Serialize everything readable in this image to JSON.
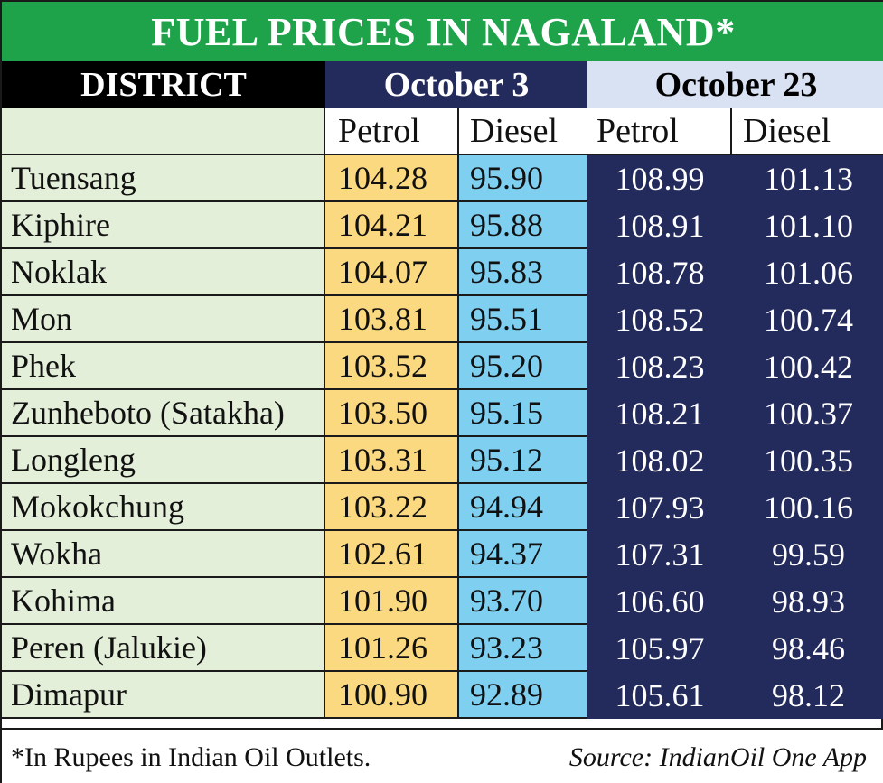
{
  "title": "FUEL PRICES IN NAGALAND*",
  "headers": {
    "district": "DISTRICT",
    "date1": "October 3",
    "date2": "October 23",
    "petrol": "Petrol",
    "diesel": "Diesel"
  },
  "footer": {
    "note": "*In Rupees in Indian Oil Outlets.",
    "source": "Source: IndianOil One App"
  },
  "colors": {
    "title_bg": "#1fa34a",
    "oct3_header_bg": "#232a5c",
    "oct23_header_bg": "#d8e2f3",
    "district_bg": "#e3efd9",
    "oct3_petrol_bg": "#fbd981",
    "oct3_diesel_bg": "#7fcff0",
    "oct23_bg": "#232a5c"
  },
  "chart_data": {
    "type": "table",
    "title": "FUEL PRICES IN NAGALAND*",
    "columns": [
      "DISTRICT",
      "October 3 Petrol",
      "October 3 Diesel",
      "October 23 Petrol",
      "October 23 Diesel"
    ],
    "rows": [
      {
        "district": "Tuensang",
        "oct3_petrol": "104.28",
        "oct3_diesel": "95.90",
        "oct23_petrol": "108.99",
        "oct23_diesel": "101.13"
      },
      {
        "district": "Kiphire",
        "oct3_petrol": "104.21",
        "oct3_diesel": "95.88",
        "oct23_petrol": "108.91",
        "oct23_diesel": "101.10"
      },
      {
        "district": "Noklak",
        "oct3_petrol": "104.07",
        "oct3_diesel": "95.83",
        "oct23_petrol": "108.78",
        "oct23_diesel": "101.06"
      },
      {
        "district": "Mon",
        "oct3_petrol": "103.81",
        "oct3_diesel": "95.51",
        "oct23_petrol": "108.52",
        "oct23_diesel": "100.74"
      },
      {
        "district": "Phek",
        "oct3_petrol": "103.52",
        "oct3_diesel": "95.20",
        "oct23_petrol": "108.23",
        "oct23_diesel": "100.42"
      },
      {
        "district": "Zunheboto (Satakha)",
        "oct3_petrol": "103.50",
        "oct3_diesel": "95.15",
        "oct23_petrol": "108.21",
        "oct23_diesel": "100.37"
      },
      {
        "district": "Longleng",
        "oct3_petrol": "103.31",
        "oct3_diesel": "95.12",
        "oct23_petrol": "108.02",
        "oct23_diesel": "100.35"
      },
      {
        "district": "Mokokchung",
        "oct3_petrol": "103.22",
        "oct3_diesel": "94.94",
        "oct23_petrol": "107.93",
        "oct23_diesel": "100.16"
      },
      {
        "district": "Wokha",
        "oct3_petrol": "102.61",
        "oct3_diesel": "94.37",
        "oct23_petrol": "107.31",
        "oct23_diesel": "99.59"
      },
      {
        "district": "Kohima",
        "oct3_petrol": "101.90",
        "oct3_diesel": "93.70",
        "oct23_petrol": "106.60",
        "oct23_diesel": "98.93"
      },
      {
        "district": "Peren (Jalukie)",
        "oct3_petrol": "101.26",
        "oct3_diesel": "93.23",
        "oct23_petrol": "105.97",
        "oct23_diesel": "98.46"
      },
      {
        "district": "Dimapur",
        "oct3_petrol": "100.90",
        "oct3_diesel": "92.89",
        "oct23_petrol": "105.61",
        "oct23_diesel": "98.12"
      }
    ]
  }
}
